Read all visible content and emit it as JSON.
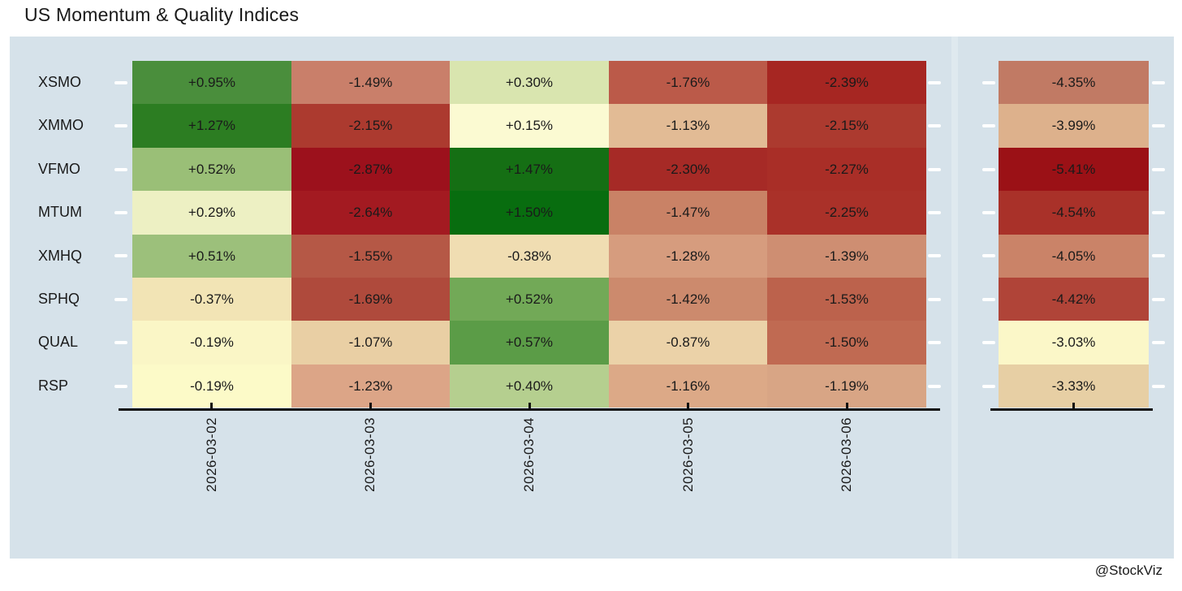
{
  "title": "US Momentum & Quality Indices",
  "attribution": "@StockViz",
  "colors": {
    "panel_background": "#d6e2ea",
    "panel_divider": "#dfe9ef",
    "axis": "#111111",
    "y_tick": "#ffffff",
    "cell_text": "#1a1a1a",
    "title_text": "#1a1a1a"
  },
  "chart_data": {
    "type": "heatmap",
    "title": "US Momentum & Quality Indices",
    "rows": [
      "XSMO",
      "XMMO",
      "VFMO",
      "MTUM",
      "XMHQ",
      "SPHQ",
      "QUAL",
      "RSP"
    ],
    "columns": [
      "2026-03-02",
      "2026-03-03",
      "2026-03-04",
      "2026-03-05",
      "2026-03-06"
    ],
    "labels": [
      [
        "+0.95%",
        "-1.49%",
        "+0.30%",
        "-1.76%",
        "-2.39%"
      ],
      [
        "+1.27%",
        "-2.15%",
        "+0.15%",
        "-1.13%",
        "-2.15%"
      ],
      [
        "+0.52%",
        "-2.87%",
        "+1.47%",
        "-2.30%",
        "-2.27%"
      ],
      [
        "+0.29%",
        "-2.64%",
        "+1.50%",
        "-1.47%",
        "-2.25%"
      ],
      [
        "+0.51%",
        "-1.55%",
        "-0.38%",
        "-1.28%",
        "-1.39%"
      ],
      [
        "-0.37%",
        "-1.69%",
        "+0.52%",
        "-1.42%",
        "-1.53%"
      ],
      [
        "-0.19%",
        "-1.07%",
        "+0.57%",
        "-0.87%",
        "-1.50%"
      ],
      [
        "-0.19%",
        "-1.23%",
        "+0.40%",
        "-1.16%",
        "-1.19%"
      ]
    ],
    "values_pct": [
      [
        0.95,
        -1.49,
        0.3,
        -1.76,
        -2.39
      ],
      [
        1.27,
        -2.15,
        0.15,
        -1.13,
        -2.15
      ],
      [
        0.52,
        -2.87,
        1.47,
        -2.3,
        -2.27
      ],
      [
        0.29,
        -2.64,
        1.5,
        -1.47,
        -2.25
      ],
      [
        0.51,
        -1.55,
        -0.38,
        -1.28,
        -1.39
      ],
      [
        -0.37,
        -1.69,
        0.52,
        -1.42,
        -1.53
      ],
      [
        -0.19,
        -1.07,
        0.57,
        -0.87,
        -1.5
      ],
      [
        -0.19,
        -1.23,
        0.4,
        -1.16,
        -1.19
      ]
    ],
    "cell_colors": [
      [
        "#4a8e3c",
        "#c97f6a",
        "#d9e5af",
        "#bb5a49",
        "#a62622"
      ],
      [
        "#2c7d22",
        "#ac3a2f",
        "#fbfad2",
        "#e2bb95",
        "#ac3a2f"
      ],
      [
        "#9abf77",
        "#9c111c",
        "#156f14",
        "#a62a26",
        "#a92e27"
      ],
      [
        "#edf0c3",
        "#a31a21",
        "#086d0f",
        "#c98266",
        "#aa3129"
      ],
      [
        "#9cc07b",
        "#b55846",
        "#f0ddb2",
        "#d69c7e",
        "#ce8e72"
      ],
      [
        "#f2e4b5",
        "#af4a3c",
        "#72a957",
        "#cc8a6d",
        "#bc624c"
      ],
      [
        "#faf6c6",
        "#e9cfa4",
        "#5b9c47",
        "#ebd2a8",
        "#c06a52"
      ],
      [
        "#fcfac8",
        "#dca587",
        "#b5cf8f",
        "#dca987",
        "#d8a585"
      ]
    ],
    "summary_column": {
      "labels": [
        "-4.35%",
        "-3.99%",
        "-5.41%",
        "-4.54%",
        "-4.05%",
        "-4.42%",
        "-3.03%",
        "-3.33%"
      ],
      "values_pct": [
        -4.35,
        -3.99,
        -5.41,
        -4.54,
        -4.05,
        -4.42,
        -3.03,
        -3.33
      ],
      "cell_colors": [
        "#c17a64",
        "#ddb18c",
        "#9b1116",
        "#a93129",
        "#ca8368",
        "#b04438",
        "#fbf7c8",
        "#e7cfa4"
      ]
    },
    "legend": "none",
    "grid": false
  }
}
